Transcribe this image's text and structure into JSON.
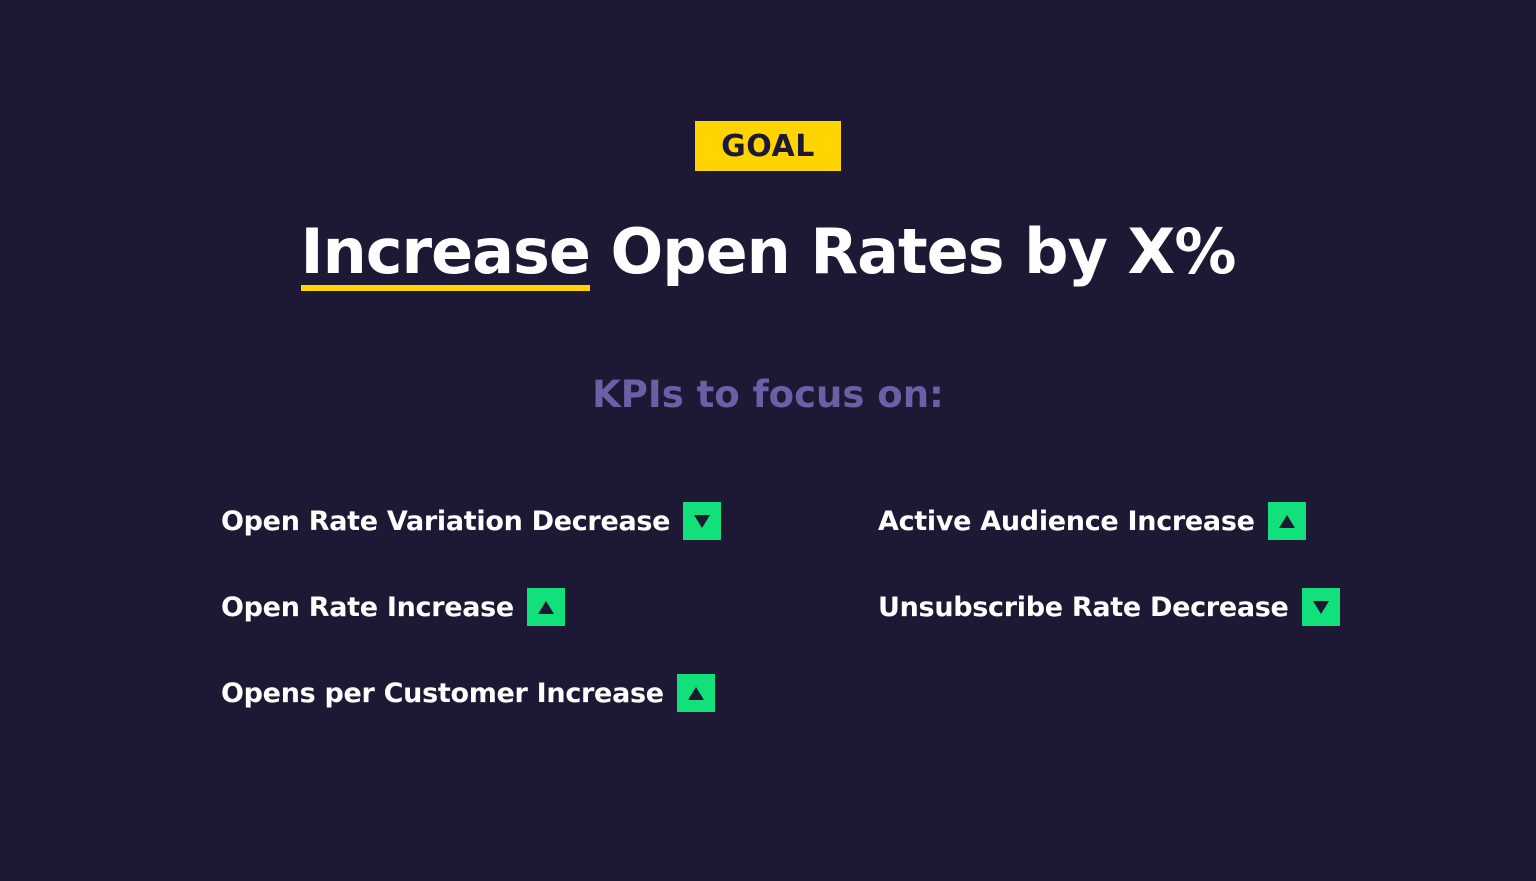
{
  "goal_badge": {
    "label": "GOAL",
    "color": "#ffd400"
  },
  "headline": {
    "emphasis": "Increase",
    "rest": " Open Rates by X%",
    "underline_color": "#ffd400"
  },
  "subheading": {
    "text": "KPIs to focus on:",
    "color": "#6d5fa6"
  },
  "kpi_indicator_color": "#12e07a",
  "kpis": [
    {
      "label": "Open Rate Variation Decrease",
      "direction": "down",
      "icon": "arrow-down-icon"
    },
    {
      "label": "Open Rate Increase",
      "direction": "up",
      "icon": "arrow-up-icon"
    },
    {
      "label": "Opens per Customer Increase",
      "direction": "up",
      "icon": "arrow-up-icon"
    },
    {
      "label": "Active Audience Increase",
      "direction": "up",
      "icon": "arrow-up-icon"
    },
    {
      "label": "Unsubscribe Rate Decrease",
      "direction": "down",
      "icon": "arrow-down-icon"
    }
  ]
}
